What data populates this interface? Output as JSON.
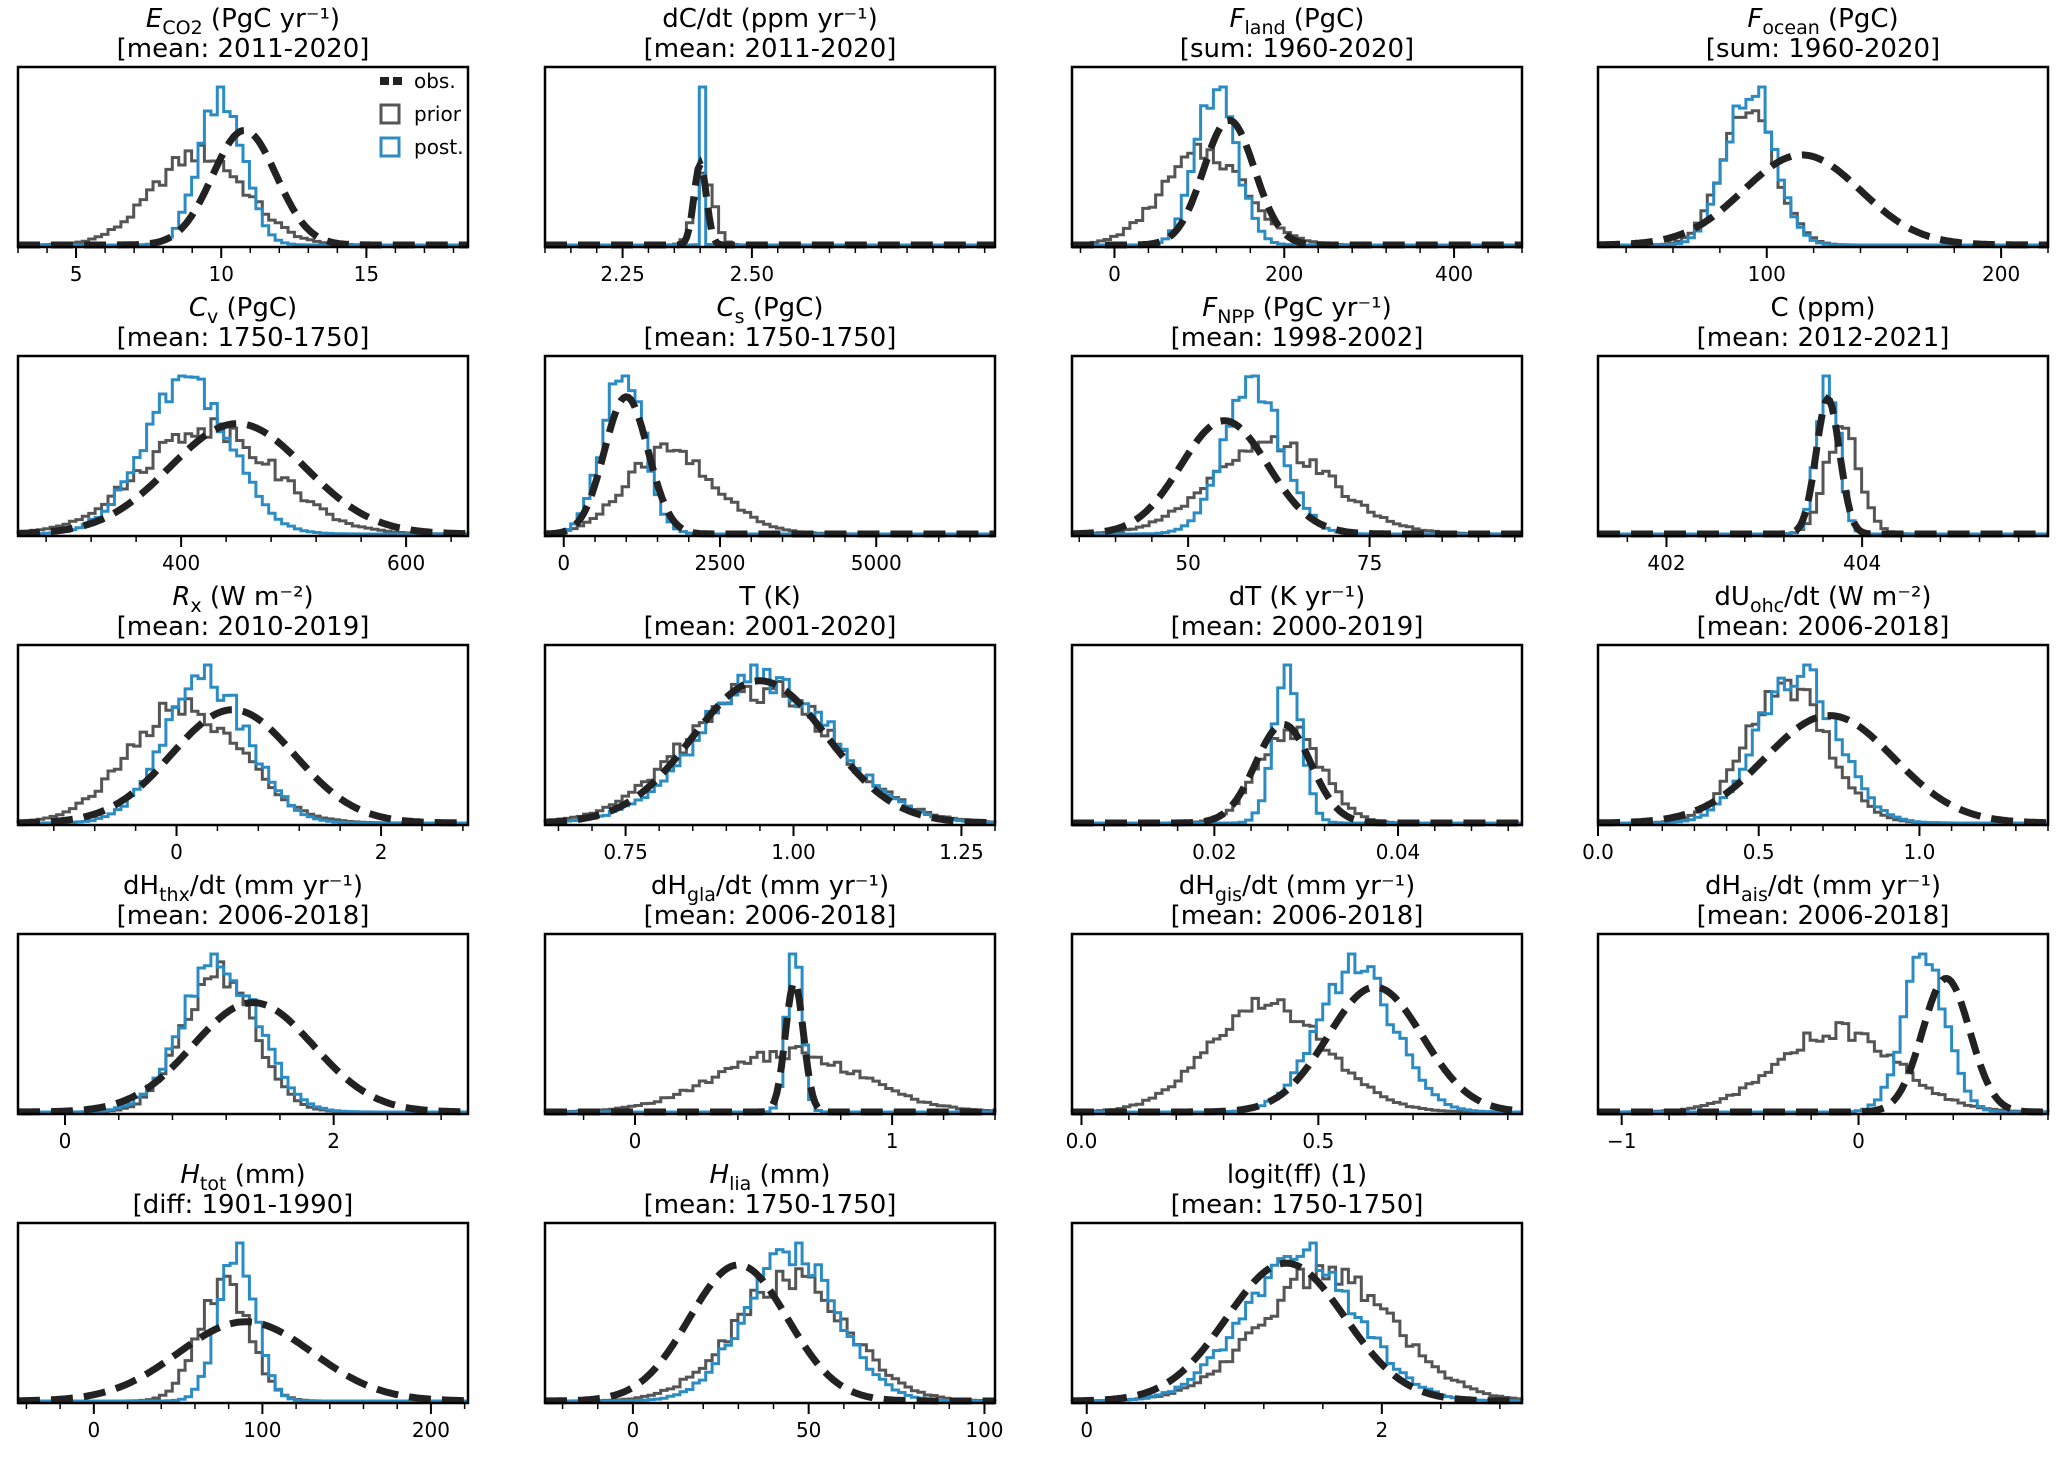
{
  "colors": {
    "obs": "#222222",
    "prior": "#555555",
    "post": "#2b8cc4",
    "frame": "#000000"
  },
  "legend": {
    "placement": "top-right of first panel",
    "entries": [
      {
        "label": "obs.",
        "key": "obs"
      },
      {
        "label": "prior",
        "key": "prior"
      },
      {
        "label": "post.",
        "key": "post"
      }
    ]
  },
  "chart_data": [
    {
      "type": "histogram",
      "title_main": "E",
      "title_sub": "CO2",
      "title_italic": true,
      "title_unit": " (PgC yr⁻¹)",
      "title_line2": "[mean: 2011-2020]",
      "xlim": [
        3,
        18.5
      ],
      "xticks": [
        5,
        10,
        15
      ],
      "xtick_labels": [
        "5",
        "10",
        "15"
      ],
      "obs": {
        "mean": 10.8,
        "sd": 1.1
      },
      "prior": {
        "mean": 9.0,
        "sd": 1.6,
        "skew": 0.2
      },
      "post": {
        "mean": 10.0,
        "sd": 0.75
      },
      "legend": true
    },
    {
      "type": "histogram",
      "title_main": "dC/dt",
      "title_sub": "",
      "title_italic": false,
      "title_unit": " (ppm yr⁻¹)",
      "title_line2": "[mean: 2011-2020]",
      "xlim": [
        2.1,
        2.97
      ],
      "xticks": [
        2.25,
        2.5
      ],
      "xtick_labels": [
        "2.25",
        "2.50"
      ],
      "obs": {
        "mean": 2.4,
        "sd": 0.012
      },
      "prior": {
        "mean": 2.4,
        "sd": 0.02,
        "skew": 0.6
      },
      "post": {
        "mean": 2.405,
        "sd": 0.0035
      }
    },
    {
      "type": "histogram",
      "title_main": "F",
      "title_sub": "land",
      "title_italic": true,
      "title_unit": " (PgC)",
      "title_line2": "[sum: 1960-2020]",
      "xlim": [
        -50,
        480
      ],
      "xticks": [
        0,
        200,
        400
      ],
      "xtick_labels": [
        "0",
        "200",
        "400"
      ],
      "obs": {
        "mean": 135,
        "sd": 30
      },
      "prior": {
        "mean": 95,
        "sd": 50,
        "skew": 0.3
      },
      "post": {
        "mean": 120,
        "sd": 24
      }
    },
    {
      "type": "histogram",
      "title_main": "F",
      "title_sub": "ocean",
      "title_italic": true,
      "title_unit": " (PgC)",
      "title_line2": "[sum: 1960-2020]",
      "xlim": [
        28,
        220
      ],
      "xticks": [
        100,
        200
      ],
      "xtick_labels": [
        "100",
        "200"
      ],
      "obs": {
        "mean": 115,
        "sd": 25
      },
      "prior": {
        "mean": 88,
        "sd": 12,
        "skew": 0.5
      },
      "post": {
        "mean": 93,
        "sd": 10
      }
    },
    {
      "type": "histogram",
      "title_main": "C",
      "title_sub": "v",
      "title_italic": true,
      "title_unit": " (PgC)",
      "title_line2": "[mean: 1750-1750]",
      "xlim": [
        255,
        655
      ],
      "xticks": [
        400,
        600
      ],
      "xtick_labels": [
        "400",
        "600"
      ],
      "obs": {
        "mean": 450,
        "sd": 60
      },
      "prior": {
        "mean": 410,
        "sd": 60,
        "skew": 0.3
      },
      "post": {
        "mean": 405,
        "sd": 38
      }
    },
    {
      "type": "histogram",
      "title_main": "C",
      "title_sub": "s",
      "title_italic": true,
      "title_unit": " (PgC)",
      "title_line2": "[mean: 1750-1750]",
      "xlim": [
        -300,
        6900
      ],
      "xticks": [
        0,
        2500,
        5000
      ],
      "xtick_labels": [
        "0",
        "2500",
        "5000"
      ],
      "obs": {
        "mean": 1000,
        "sd": 350
      },
      "prior": {
        "mean": 1200,
        "sd": 900,
        "skew": 1.2
      },
      "post": {
        "mean": 950,
        "sd": 330
      }
    },
    {
      "type": "histogram",
      "title_main": "F",
      "title_sub": "NPP",
      "title_italic": true,
      "title_unit": " (PgC yr⁻¹)",
      "title_line2": "[mean: 1998-2002]",
      "xlim": [
        34,
        96
      ],
      "xticks": [
        50,
        75
      ],
      "xtick_labels": [
        "50",
        "75"
      ],
      "obs": {
        "mean": 55,
        "sd": 6
      },
      "prior": {
        "mean": 58,
        "sd": 9,
        "skew": 0.6
      },
      "post": {
        "mean": 59,
        "sd": 4
      }
    },
    {
      "type": "histogram",
      "title_main": "C",
      "title_sub": "",
      "title_italic": false,
      "title_unit": " (ppm)",
      "title_line2": "[mean: 2012-2021]",
      "xlim": [
        401.3,
        405.9
      ],
      "xticks": [
        402,
        404
      ],
      "xtick_labels": [
        "402",
        "404"
      ],
      "obs": {
        "mean": 403.65,
        "sd": 0.12
      },
      "prior": {
        "mean": 403.7,
        "sd": 0.2,
        "skew": 0.8
      },
      "post": {
        "mean": 403.65,
        "sd": 0.11
      }
    },
    {
      "type": "histogram",
      "title_main": "R",
      "title_sub": "x",
      "title_italic": true,
      "title_unit": " (W m⁻²)",
      "title_line2": "[mean: 2010-2019]",
      "xlim": [
        -1.55,
        2.85
      ],
      "xticks": [
        0,
        2
      ],
      "xtick_labels": [
        "0",
        "2"
      ],
      "obs": {
        "mean": 0.55,
        "sd": 0.6
      },
      "prior": {
        "mean": 0.0,
        "sd": 0.55,
        "skew": 0.2
      },
      "post": {
        "mean": 0.3,
        "sd": 0.4
      }
    },
    {
      "type": "histogram",
      "title_main": "T",
      "title_sub": "",
      "title_italic": false,
      "title_unit": " (K)",
      "title_line2": "[mean: 2001-2020]",
      "xlim": [
        0.63,
        1.3
      ],
      "xticks": [
        0.75,
        1.0,
        1.25
      ],
      "xtick_labels": [
        "0.75",
        "1.00",
        "1.25"
      ],
      "obs": {
        "mean": 0.95,
        "sd": 0.1
      },
      "prior": {
        "mean": 0.95,
        "sd": 0.11,
        "skew": 0.0
      },
      "post": {
        "mean": 0.96,
        "sd": 0.1
      }
    },
    {
      "type": "histogram",
      "title_main": "dT",
      "title_sub": "",
      "title_italic": false,
      "title_unit": " (K yr⁻¹)",
      "title_line2": "[mean: 2000-2019]",
      "xlim": [
        0.0045,
        0.0535
      ],
      "xticks": [
        0.02,
        0.04
      ],
      "xtick_labels": [
        "0.02",
        "0.04"
      ],
      "obs": {
        "mean": 0.0275,
        "sd": 0.003
      },
      "prior": {
        "mean": 0.0275,
        "sd": 0.0035,
        "skew": 0.3
      },
      "post": {
        "mean": 0.028,
        "sd": 0.0015
      }
    },
    {
      "type": "histogram",
      "title_main": "dU",
      "title_sub": "ohc",
      "title_italic": false,
      "title_unit": "/dt (W m⁻²)",
      "title_line2": "[mean: 2006-2018]",
      "xlim": [
        0,
        1.4
      ],
      "xticks": [
        0.0,
        0.5,
        1.0
      ],
      "xtick_labels": [
        "0.0",
        "0.5",
        "1.0"
      ],
      "obs": {
        "mean": 0.72,
        "sd": 0.2
      },
      "prior": {
        "mean": 0.55,
        "sd": 0.13,
        "skew": 0.4
      },
      "post": {
        "mean": 0.62,
        "sd": 0.12
      }
    },
    {
      "type": "histogram",
      "title_main": "dH",
      "title_sub": "thx",
      "title_italic": false,
      "title_unit": "/dt (mm yr⁻¹)",
      "title_line2": "[mean: 2006-2018]",
      "xlim": [
        -0.35,
        3.0
      ],
      "xticks": [
        0,
        2
      ],
      "xtick_labels": [
        "0",
        "2"
      ],
      "obs": {
        "mean": 1.4,
        "sd": 0.45
      },
      "prior": {
        "mean": 1.05,
        "sd": 0.28,
        "skew": 0.5
      },
      "post": {
        "mean": 1.15,
        "sd": 0.28
      }
    },
    {
      "type": "histogram",
      "title_main": "dH",
      "title_sub": "gla",
      "title_italic": false,
      "title_unit": "/dt (mm yr⁻¹)",
      "title_line2": "[mean: 2006-2018]",
      "xlim": [
        -0.35,
        1.4
      ],
      "xticks": [
        0,
        1
      ],
      "xtick_labels": [
        "0",
        "1"
      ],
      "obs": {
        "mean": 0.62,
        "sd": 0.035
      },
      "prior": {
        "mean": 0.6,
        "sd": 0.28,
        "skew": 0.0
      },
      "post": {
        "mean": 0.62,
        "sd": 0.03
      }
    },
    {
      "type": "histogram",
      "title_main": "dH",
      "title_sub": "gis",
      "title_italic": false,
      "title_unit": "/dt (mm yr⁻¹)",
      "title_line2": "[mean: 2006-2018]",
      "xlim": [
        -0.02,
        0.93
      ],
      "xticks": [
        0.0,
        0.5
      ],
      "xtick_labels": [
        "0.0",
        "0.5"
      ],
      "obs": {
        "mean": 0.62,
        "sd": 0.1
      },
      "prior": {
        "mean": 0.35,
        "sd": 0.13,
        "skew": 0.5
      },
      "post": {
        "mean": 0.58,
        "sd": 0.08
      }
    },
    {
      "type": "histogram",
      "title_main": "dH",
      "title_sub": "ais",
      "title_italic": false,
      "title_unit": "/dt (mm yr⁻¹)",
      "title_line2": "[mean: 2006-2018]",
      "xlim": [
        -1.1,
        0.8
      ],
      "xticks": [
        -1,
        0
      ],
      "xtick_labels": [
        "−1",
        "0"
      ],
      "obs": {
        "mean": 0.37,
        "sd": 0.1
      },
      "prior": {
        "mean": -0.05,
        "sd": 0.25,
        "skew": -0.2
      },
      "post": {
        "mean": 0.28,
        "sd": 0.09
      }
    },
    {
      "type": "histogram",
      "title_main": "H",
      "title_sub": "tot",
      "title_italic": true,
      "title_unit": " (mm)",
      "title_line2": "[diff: 1901-1990]",
      "xlim": [
        -45,
        222
      ],
      "xticks": [
        0,
        100,
        200
      ],
      "xtick_labels": [
        "0",
        "100",
        "200"
      ],
      "obs": {
        "mean": 90,
        "sd": 40
      },
      "prior": {
        "mean": 75,
        "sd": 15,
        "skew": 0.2
      },
      "post": {
        "mean": 85,
        "sd": 11
      }
    },
    {
      "type": "histogram",
      "title_main": "H",
      "title_sub": "lia",
      "title_italic": true,
      "title_unit": " (mm)",
      "title_line2": "[mean: 1750-1750]",
      "xlim": [
        -25,
        103
      ],
      "xticks": [
        0,
        50,
        100
      ],
      "xtick_labels": [
        "0",
        "50",
        "100"
      ],
      "obs": {
        "mean": 30,
        "sd": 14
      },
      "prior": {
        "mean": 45,
        "sd": 16,
        "skew": 0.0
      },
      "post": {
        "mean": 45,
        "sd": 13
      }
    },
    {
      "type": "histogram",
      "title_main": "logit(ff)",
      "title_sub": "",
      "title_italic": false,
      "title_unit": " (1)",
      "title_line2": "[mean: 1750-1750]",
      "xlim": [
        -0.1,
        2.95
      ],
      "xticks": [
        0,
        2
      ],
      "xtick_labels": [
        "0",
        "2"
      ],
      "obs": {
        "mean": 1.35,
        "sd": 0.4
      },
      "prior": {
        "mean": 1.6,
        "sd": 0.45,
        "skew": 0.1
      },
      "post": {
        "mean": 1.45,
        "sd": 0.38
      }
    }
  ]
}
